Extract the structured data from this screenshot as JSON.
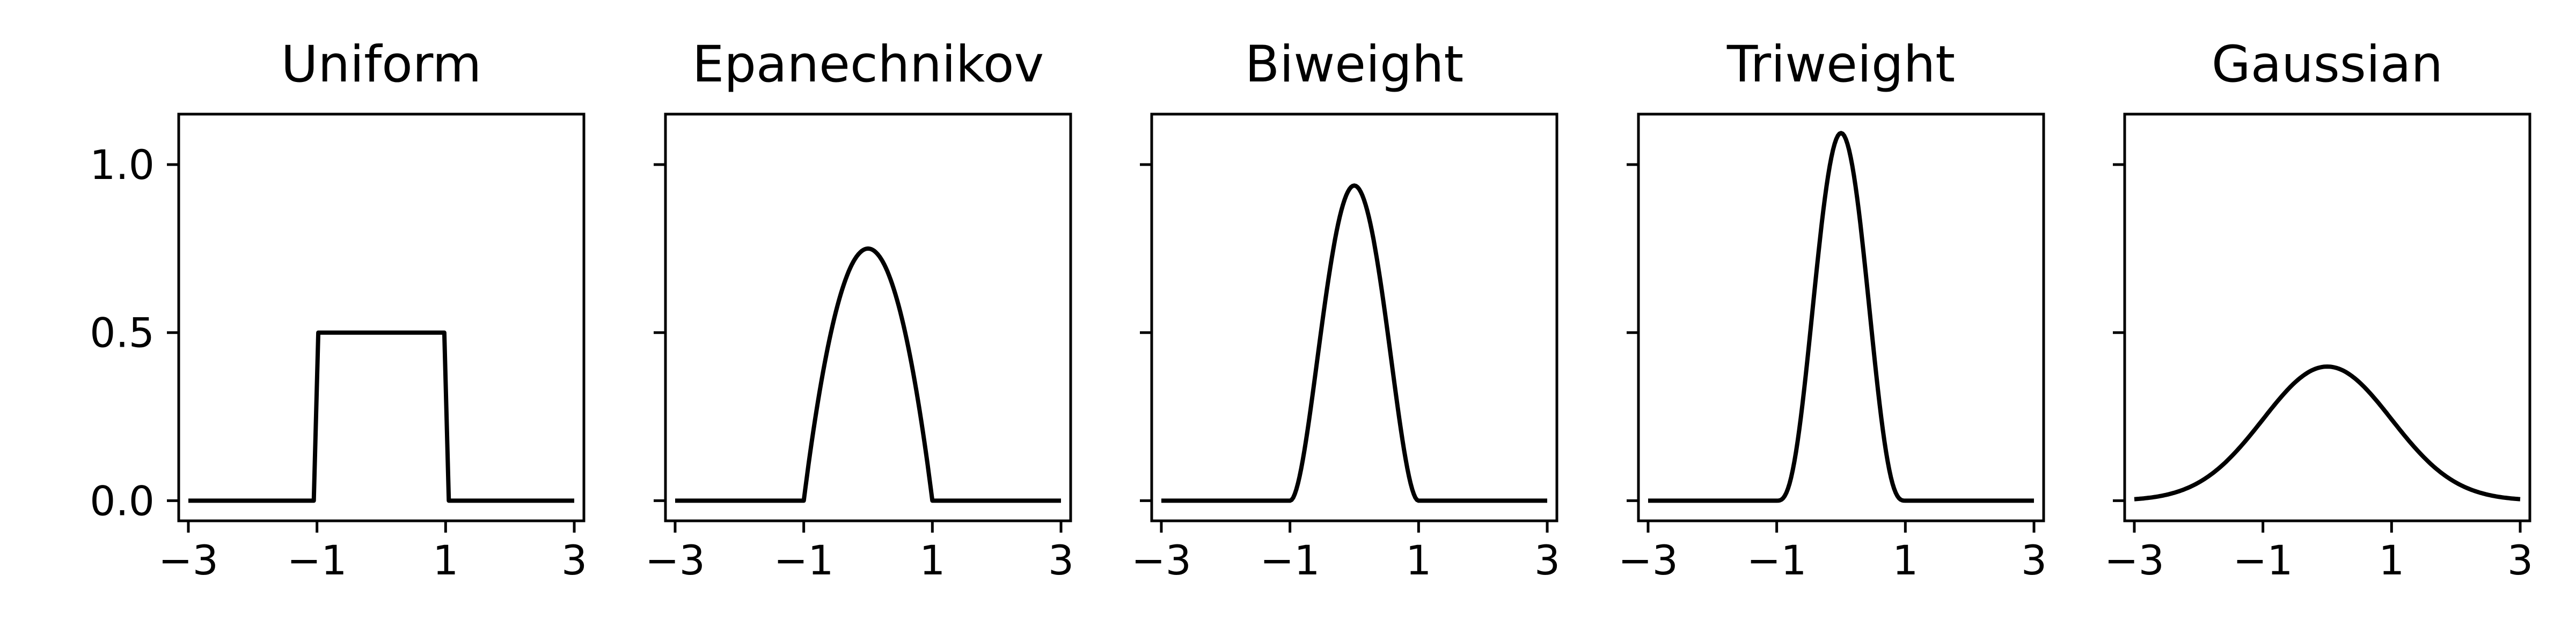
{
  "chart_data": [
    {
      "type": "line",
      "title": "Uniform",
      "kernel": "uniform",
      "xlim": [
        -3.15,
        3.15
      ],
      "ylim": [
        -0.06,
        1.15
      ],
      "xticks": [
        -3,
        -1,
        1,
        3
      ],
      "xtick_labels": [
        "−3",
        "−1",
        "1",
        "3"
      ],
      "yticks": [
        0.0,
        0.5,
        1.0
      ],
      "ytick_labels": [
        "0.0",
        "0.5",
        "1.0"
      ],
      "show_ytick_labels": true,
      "x": [
        -3,
        -1.05,
        -0.98,
        0.98,
        1.05,
        3
      ],
      "y": [
        0,
        0,
        0.5,
        0.5,
        0,
        0
      ]
    },
    {
      "type": "line",
      "title": "Epanechnikov",
      "kernel": "epanechnikov",
      "xlim": [
        -3.15,
        3.15
      ],
      "ylim": [
        -0.06,
        1.15
      ],
      "xticks": [
        -3,
        -1,
        1,
        3
      ],
      "xtick_labels": [
        "−3",
        "−1",
        "1",
        "3"
      ],
      "yticks": [
        0.0,
        0.5,
        1.0
      ],
      "ytick_labels": [
        "0.0",
        "0.5",
        "1.0"
      ],
      "show_ytick_labels": false,
      "x": [
        -3,
        -1,
        -0.8,
        -0.6,
        -0.4,
        -0.2,
        0,
        0.2,
        0.4,
        0.6,
        0.8,
        1,
        3
      ],
      "y": [
        0,
        0,
        0.27,
        0.48,
        0.63,
        0.72,
        0.75,
        0.72,
        0.63,
        0.48,
        0.27,
        0,
        0
      ]
    },
    {
      "type": "line",
      "title": "Biweight",
      "kernel": "biweight",
      "xlim": [
        -3.15,
        3.15
      ],
      "ylim": [
        -0.06,
        1.15
      ],
      "xticks": [
        -3,
        -1,
        1,
        3
      ],
      "xtick_labels": [
        "−3",
        "−1",
        "1",
        "3"
      ],
      "yticks": [
        0.0,
        0.5,
        1.0
      ],
      "ytick_labels": [
        "0.0",
        "0.5",
        "1.0"
      ],
      "show_ytick_labels": false,
      "x": [
        -3,
        -1,
        -0.8,
        -0.6,
        -0.4,
        -0.2,
        0,
        0.2,
        0.4,
        0.6,
        0.8,
        1,
        3
      ],
      "y": [
        0,
        0,
        0.12,
        0.38,
        0.66,
        0.86,
        0.94,
        0.86,
        0.66,
        0.38,
        0.12,
        0,
        0
      ]
    },
    {
      "type": "line",
      "title": "Triweight",
      "kernel": "triweight",
      "xlim": [
        -3.15,
        3.15
      ],
      "ylim": [
        -0.06,
        1.15
      ],
      "xticks": [
        -3,
        -1,
        1,
        3
      ],
      "xtick_labels": [
        "−3",
        "−1",
        "1",
        "3"
      ],
      "yticks": [
        0.0,
        0.5,
        1.0
      ],
      "ytick_labels": [
        "0.0",
        "0.5",
        "1.0"
      ],
      "show_ytick_labels": false,
      "x": [
        -3,
        -1,
        -0.8,
        -0.6,
        -0.4,
        -0.2,
        0,
        0.2,
        0.4,
        0.6,
        0.8,
        1,
        3
      ],
      "y": [
        0,
        0,
        0.05,
        0.29,
        0.65,
        0.97,
        1.09,
        0.97,
        0.65,
        0.29,
        0.05,
        0,
        0
      ]
    },
    {
      "type": "line",
      "title": "Gaussian",
      "kernel": "gaussian",
      "xlim": [
        -3.15,
        3.15
      ],
      "ylim": [
        -0.06,
        1.15
      ],
      "xticks": [
        -3,
        -1,
        1,
        3
      ],
      "xtick_labels": [
        "−3",
        "−1",
        "1",
        "3"
      ],
      "yticks": [
        0.0,
        0.5,
        1.0
      ],
      "ytick_labels": [
        "0.0",
        "0.5",
        "1.0"
      ],
      "show_ytick_labels": false,
      "x": [
        -3,
        -2.5,
        -2,
        -1.5,
        -1,
        -0.5,
        0,
        0.5,
        1,
        1.5,
        2,
        2.5,
        3
      ],
      "y": [
        0.004,
        0.018,
        0.054,
        0.13,
        0.24,
        0.35,
        0.4,
        0.35,
        0.24,
        0.13,
        0.054,
        0.018,
        0.004
      ]
    }
  ]
}
